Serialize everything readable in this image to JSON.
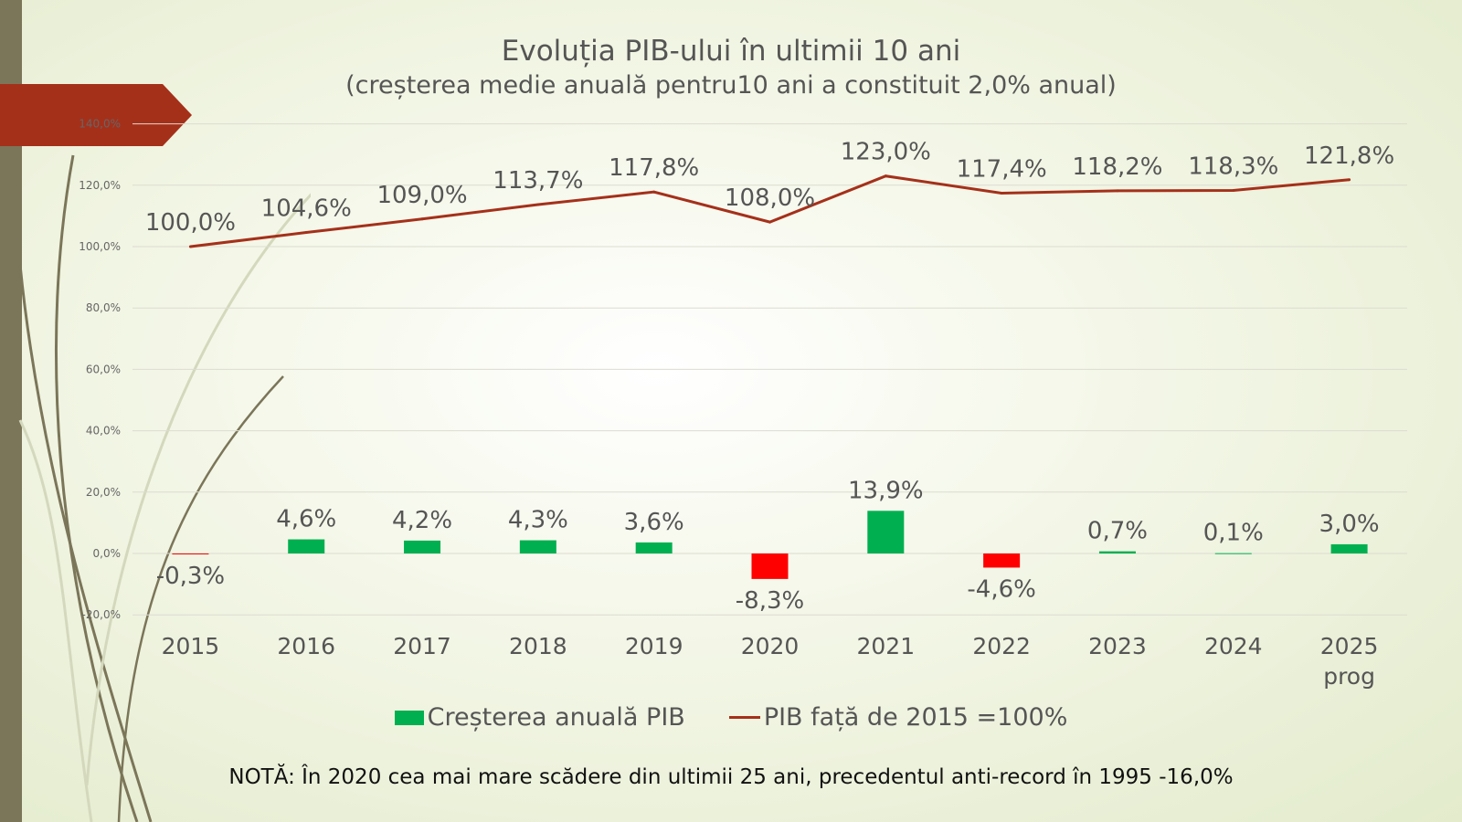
{
  "title": "Evoluția PIB-ului în ultimii 10 ani",
  "subtitle": "(creșterea medie anuală pentru10 ani a constituit 2,0% anual)",
  "note": "NOTĂ: În 2020 cea mai mare scădere din ultimii 25 ani, precedentul anti-record în 1995 -16,0%",
  "legend": {
    "bars_label": "Creșterea anuală PIB",
    "line_label": "PIB față de 2015 =100%"
  },
  "colors": {
    "bar_positive": "#00b050",
    "bar_negative": "#ff0000",
    "line": "#a5301a",
    "accent_tab": "#a5301a",
    "side_bar": "#7b7559"
  },
  "chart_data": {
    "type": "bar",
    "categories": [
      "2015",
      "2016",
      "2017",
      "2018",
      "2019",
      "2020",
      "2021",
      "2022",
      "2023",
      "2024",
      "2025 prog"
    ],
    "series": [
      {
        "name": "Creșterea anuală PIB",
        "type": "bar",
        "values": [
          -0.3,
          4.6,
          4.2,
          4.3,
          3.6,
          -8.3,
          13.9,
          -4.6,
          0.7,
          0.1,
          3.0
        ],
        "labels": [
          "-0,3%",
          "4,6%",
          "4,2%",
          "4,3%",
          "3,6%",
          "-8,3%",
          "13,9%",
          "-4,6%",
          "0,7%",
          "0,1%",
          "3,0%"
        ]
      },
      {
        "name": "PIB față de 2015 =100%",
        "type": "line",
        "values": [
          100.0,
          104.6,
          109.0,
          113.7,
          117.8,
          108.0,
          123.0,
          117.4,
          118.2,
          118.3,
          121.8
        ],
        "labels": [
          "100,0%",
          "104,6%",
          "109,0%",
          "113,7%",
          "117,8%",
          "108,0%",
          "123,0%",
          "117,4%",
          "118,2%",
          "118,3%",
          "121,8%"
        ]
      }
    ],
    "yticks": [
      -20,
      0,
      20,
      40,
      60,
      80,
      100,
      120,
      140
    ],
    "ytick_labels": [
      "-20,0%",
      "0,0%",
      "20,0%",
      "40,0%",
      "60,0%",
      "80,0%",
      "100,0%",
      "120,0%",
      "140,0%"
    ],
    "ylim": [
      -20,
      140
    ],
    "grid": true,
    "legend_position": "bottom"
  }
}
